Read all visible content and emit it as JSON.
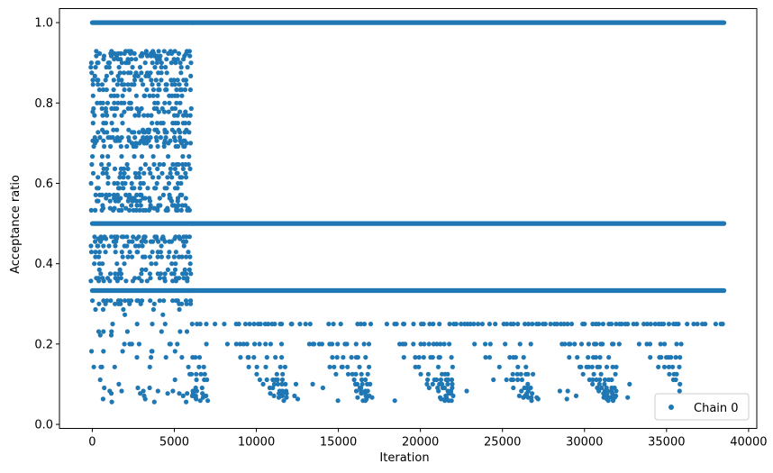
{
  "chart_data": {
    "type": "scatter",
    "title": "",
    "xlabel": "Iteration",
    "ylabel": "Acceptance ratio",
    "xlim": [
      -2000,
      40500
    ],
    "ylim": [
      -0.01,
      1.035
    ],
    "xticks": [
      0,
      5000,
      10000,
      15000,
      20000,
      25000,
      30000,
      35000,
      40000
    ],
    "xtick_labels": [
      "0",
      "5000",
      "10000",
      "15000",
      "20000",
      "25000",
      "30000",
      "35000",
      "40000"
    ],
    "yticks": [
      0.0,
      0.2,
      0.4,
      0.6,
      0.8,
      1.0
    ],
    "ytick_labels": [
      "0.0",
      "0.2",
      "0.4",
      "0.6",
      "0.8",
      "1.0"
    ],
    "grid": false,
    "legend": {
      "position": "lower-right",
      "entries": [
        "Chain 0"
      ]
    },
    "series": [
      {
        "name": "Chain 0",
        "color": "#1f77b4",
        "marker": "circle",
        "phases": [
          {
            "x_range": [
              0,
              6100
            ],
            "dense_levels": [
              0.5,
              0.333,
              1.0
            ],
            "levels": [
              0.929,
              0.923,
              0.917,
              0.909,
              0.9,
              0.889,
              0.875,
              0.867,
              0.857,
              0.846,
              0.833,
              0.818,
              0.8,
              0.786,
              0.778,
              0.769,
              0.75,
              0.733,
              0.727,
              0.714,
              0.706,
              0.7,
              0.692,
              0.667,
              0.647,
              0.636,
              0.625,
              0.615,
              0.6,
              0.588,
              0.571,
              0.563,
              0.556,
              0.545,
              0.538,
              0.533,
              0.467,
              0.462,
              0.455,
              0.444,
              0.429,
              0.417,
              0.4,
              0.385,
              0.375,
              0.364,
              0.357,
              0.308,
              0.3,
              0.286,
              0.273,
              0.25,
              0.231,
              0.222,
              0.2,
              0.182,
              0.167,
              0.143,
              0.125,
              0.111,
              0.1,
              0.091,
              0.083,
              0.077,
              0.071,
              0.063,
              0.056
            ],
            "density": 0.5
          },
          {
            "x_range": [
              6100,
              38500
            ],
            "dense_levels": [
              1.0,
              0.5,
              0.333
            ],
            "levels": [
              0.25,
              0.2,
              0.167,
              0.143,
              0.125,
              0.111,
              0.1,
              0.091,
              0.083,
              0.077,
              0.071,
              0.067,
              0.063,
              0.059
            ],
            "density": 0.3
          }
        ]
      }
    ]
  }
}
